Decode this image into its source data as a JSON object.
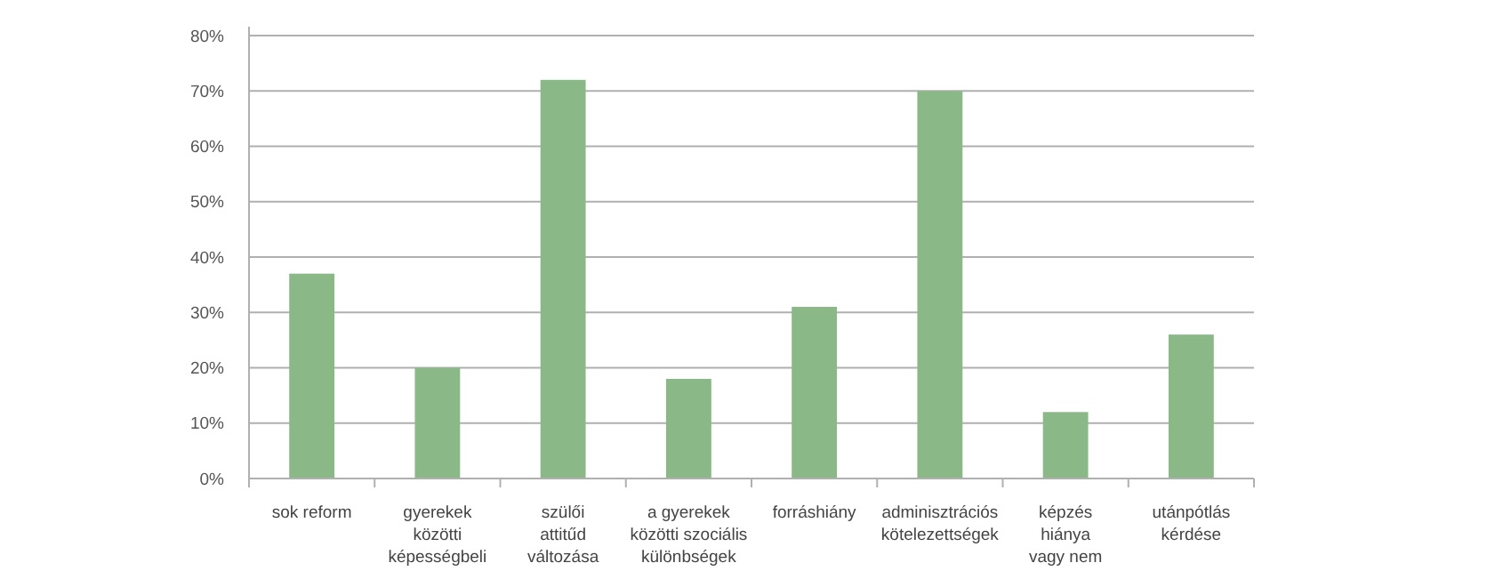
{
  "chart_data": {
    "type": "bar",
    "categories": [
      "sok reform",
      "gyerekek\nközötti\nképességbeli",
      "szülői\nattitűd\nváltozása",
      "a gyerekek\nközötti szociális\nkülönbségek",
      "forráshiány",
      "adminisztrációs\nkötelezettségek",
      "képzés\nhiánya\nvagy nem",
      "utánpótlás\nkérdése"
    ],
    "values": [
      37,
      20,
      72,
      18,
      31,
      70,
      12,
      26
    ],
    "color": "#8ab887",
    "ylim": [
      0,
      80
    ],
    "yticks": [
      {
        "value": 0,
        "label": "0%"
      },
      {
        "value": 10,
        "label": "10%"
      },
      {
        "value": 20,
        "label": "20%"
      },
      {
        "value": 30,
        "label": "30%"
      },
      {
        "value": 40,
        "label": "40%"
      },
      {
        "value": 50,
        "label": "50%"
      },
      {
        "value": 60,
        "label": "60%"
      },
      {
        "value": 70,
        "label": "70%"
      },
      {
        "value": 80,
        "label": "80%"
      }
    ],
    "grid": "y"
  }
}
